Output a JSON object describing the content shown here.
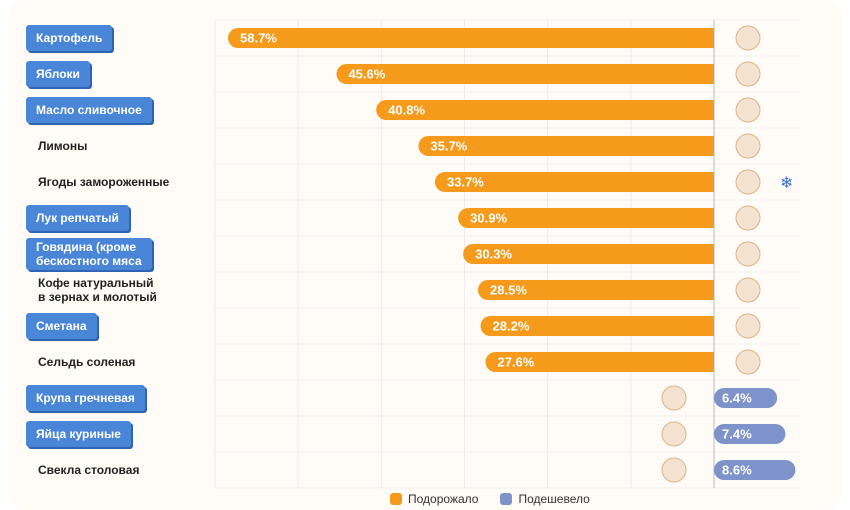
{
  "chart_data": {
    "type": "bar",
    "orientation": "horizontal",
    "diverging": true,
    "colors": {
      "up": "#f59a1b",
      "down": "#7d93c9",
      "label_box": "#4a86d8"
    },
    "grid": true,
    "legend_placement": "bottom-center",
    "legend": [
      {
        "key": "up",
        "label": "Подорожало"
      },
      {
        "key": "down",
        "label": "Подешевело"
      }
    ],
    "rows": [
      {
        "label": "Картофель",
        "value": 58.7,
        "text": "58.7%",
        "series": "up",
        "boxed": true,
        "icon": "potato-icon"
      },
      {
        "label": "Яблоки",
        "value": 45.6,
        "text": "45.6%",
        "series": "up",
        "boxed": true,
        "icon": "apple-icon"
      },
      {
        "label": "Масло сливочное",
        "value": 40.8,
        "text": "40.8%",
        "series": "up",
        "boxed": true,
        "icon": "butter-icon"
      },
      {
        "label": "Лимоны",
        "value": 35.7,
        "text": "35.7%",
        "series": "up",
        "boxed": false,
        "icon": "lemon-icon"
      },
      {
        "label": "Ягоды замороженные",
        "value": 33.7,
        "text": "33.7%",
        "series": "up",
        "boxed": false,
        "icon": "frozen-berry-icon"
      },
      {
        "label": "Лук репчатый",
        "value": 30.9,
        "text": "30.9%",
        "series": "up",
        "boxed": true,
        "icon": "onion-icon"
      },
      {
        "label": "Говядина (кроме\nбескостного мяса",
        "value": 30.3,
        "text": "30.3%",
        "series": "up",
        "boxed": true,
        "icon": "canned-meat-icon"
      },
      {
        "label": "Кофе натуральный\nв зернах и молотый",
        "value": 28.5,
        "text": "28.5%",
        "series": "up",
        "boxed": false,
        "icon": "coffee-icon"
      },
      {
        "label": "Сметана",
        "value": 28.2,
        "text": "28.2%",
        "series": "up",
        "boxed": true,
        "icon": "sour-cream-icon"
      },
      {
        "label": "Сельдь соленая",
        "value": 27.6,
        "text": "27.6%",
        "series": "up",
        "boxed": false,
        "icon": "herring-icon"
      },
      {
        "label": "Крупа гречневая",
        "value": 6.4,
        "text": "6.4%",
        "series": "down",
        "boxed": true,
        "icon": "buckwheat-icon"
      },
      {
        "label": "Яйца куриные",
        "value": 7.4,
        "text": "7.4%",
        "series": "down",
        "boxed": true,
        "icon": "eggs-icon"
      },
      {
        "label": "Свекла столовая",
        "value": 8.6,
        "text": "8.6%",
        "series": "down",
        "boxed": false,
        "icon": "beet-icon"
      }
    ]
  }
}
